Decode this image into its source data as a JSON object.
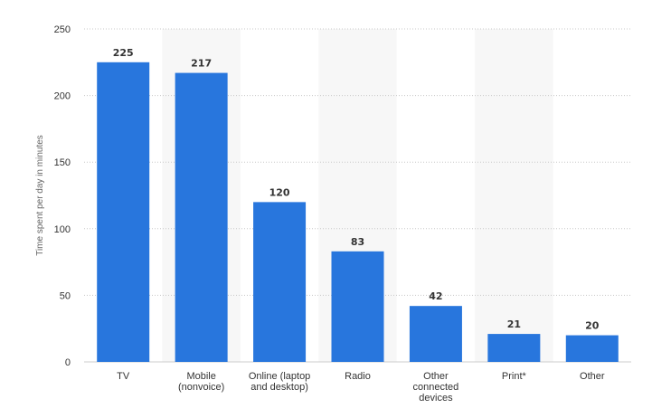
{
  "chart_data": {
    "type": "bar",
    "title": "",
    "xlabel": "",
    "ylabel": "Time spent per day in minutes",
    "categories": [
      [
        "TV"
      ],
      [
        "Mobile",
        "(nonvoice)"
      ],
      [
        "Online (laptop",
        "and desktop)"
      ],
      [
        "Radio"
      ],
      [
        "Other",
        "connected",
        "devices"
      ],
      [
        "Print*"
      ],
      [
        "Other"
      ]
    ],
    "values": [
      225,
      217,
      120,
      83,
      42,
      21,
      20
    ],
    "ylim": [
      0,
      250
    ],
    "yticks": [
      0,
      50,
      100,
      150,
      200,
      250
    ],
    "grid": true,
    "legend": "none",
    "bar_color": "#2876dd",
    "alt_band_color": "#f7f7f7"
  }
}
